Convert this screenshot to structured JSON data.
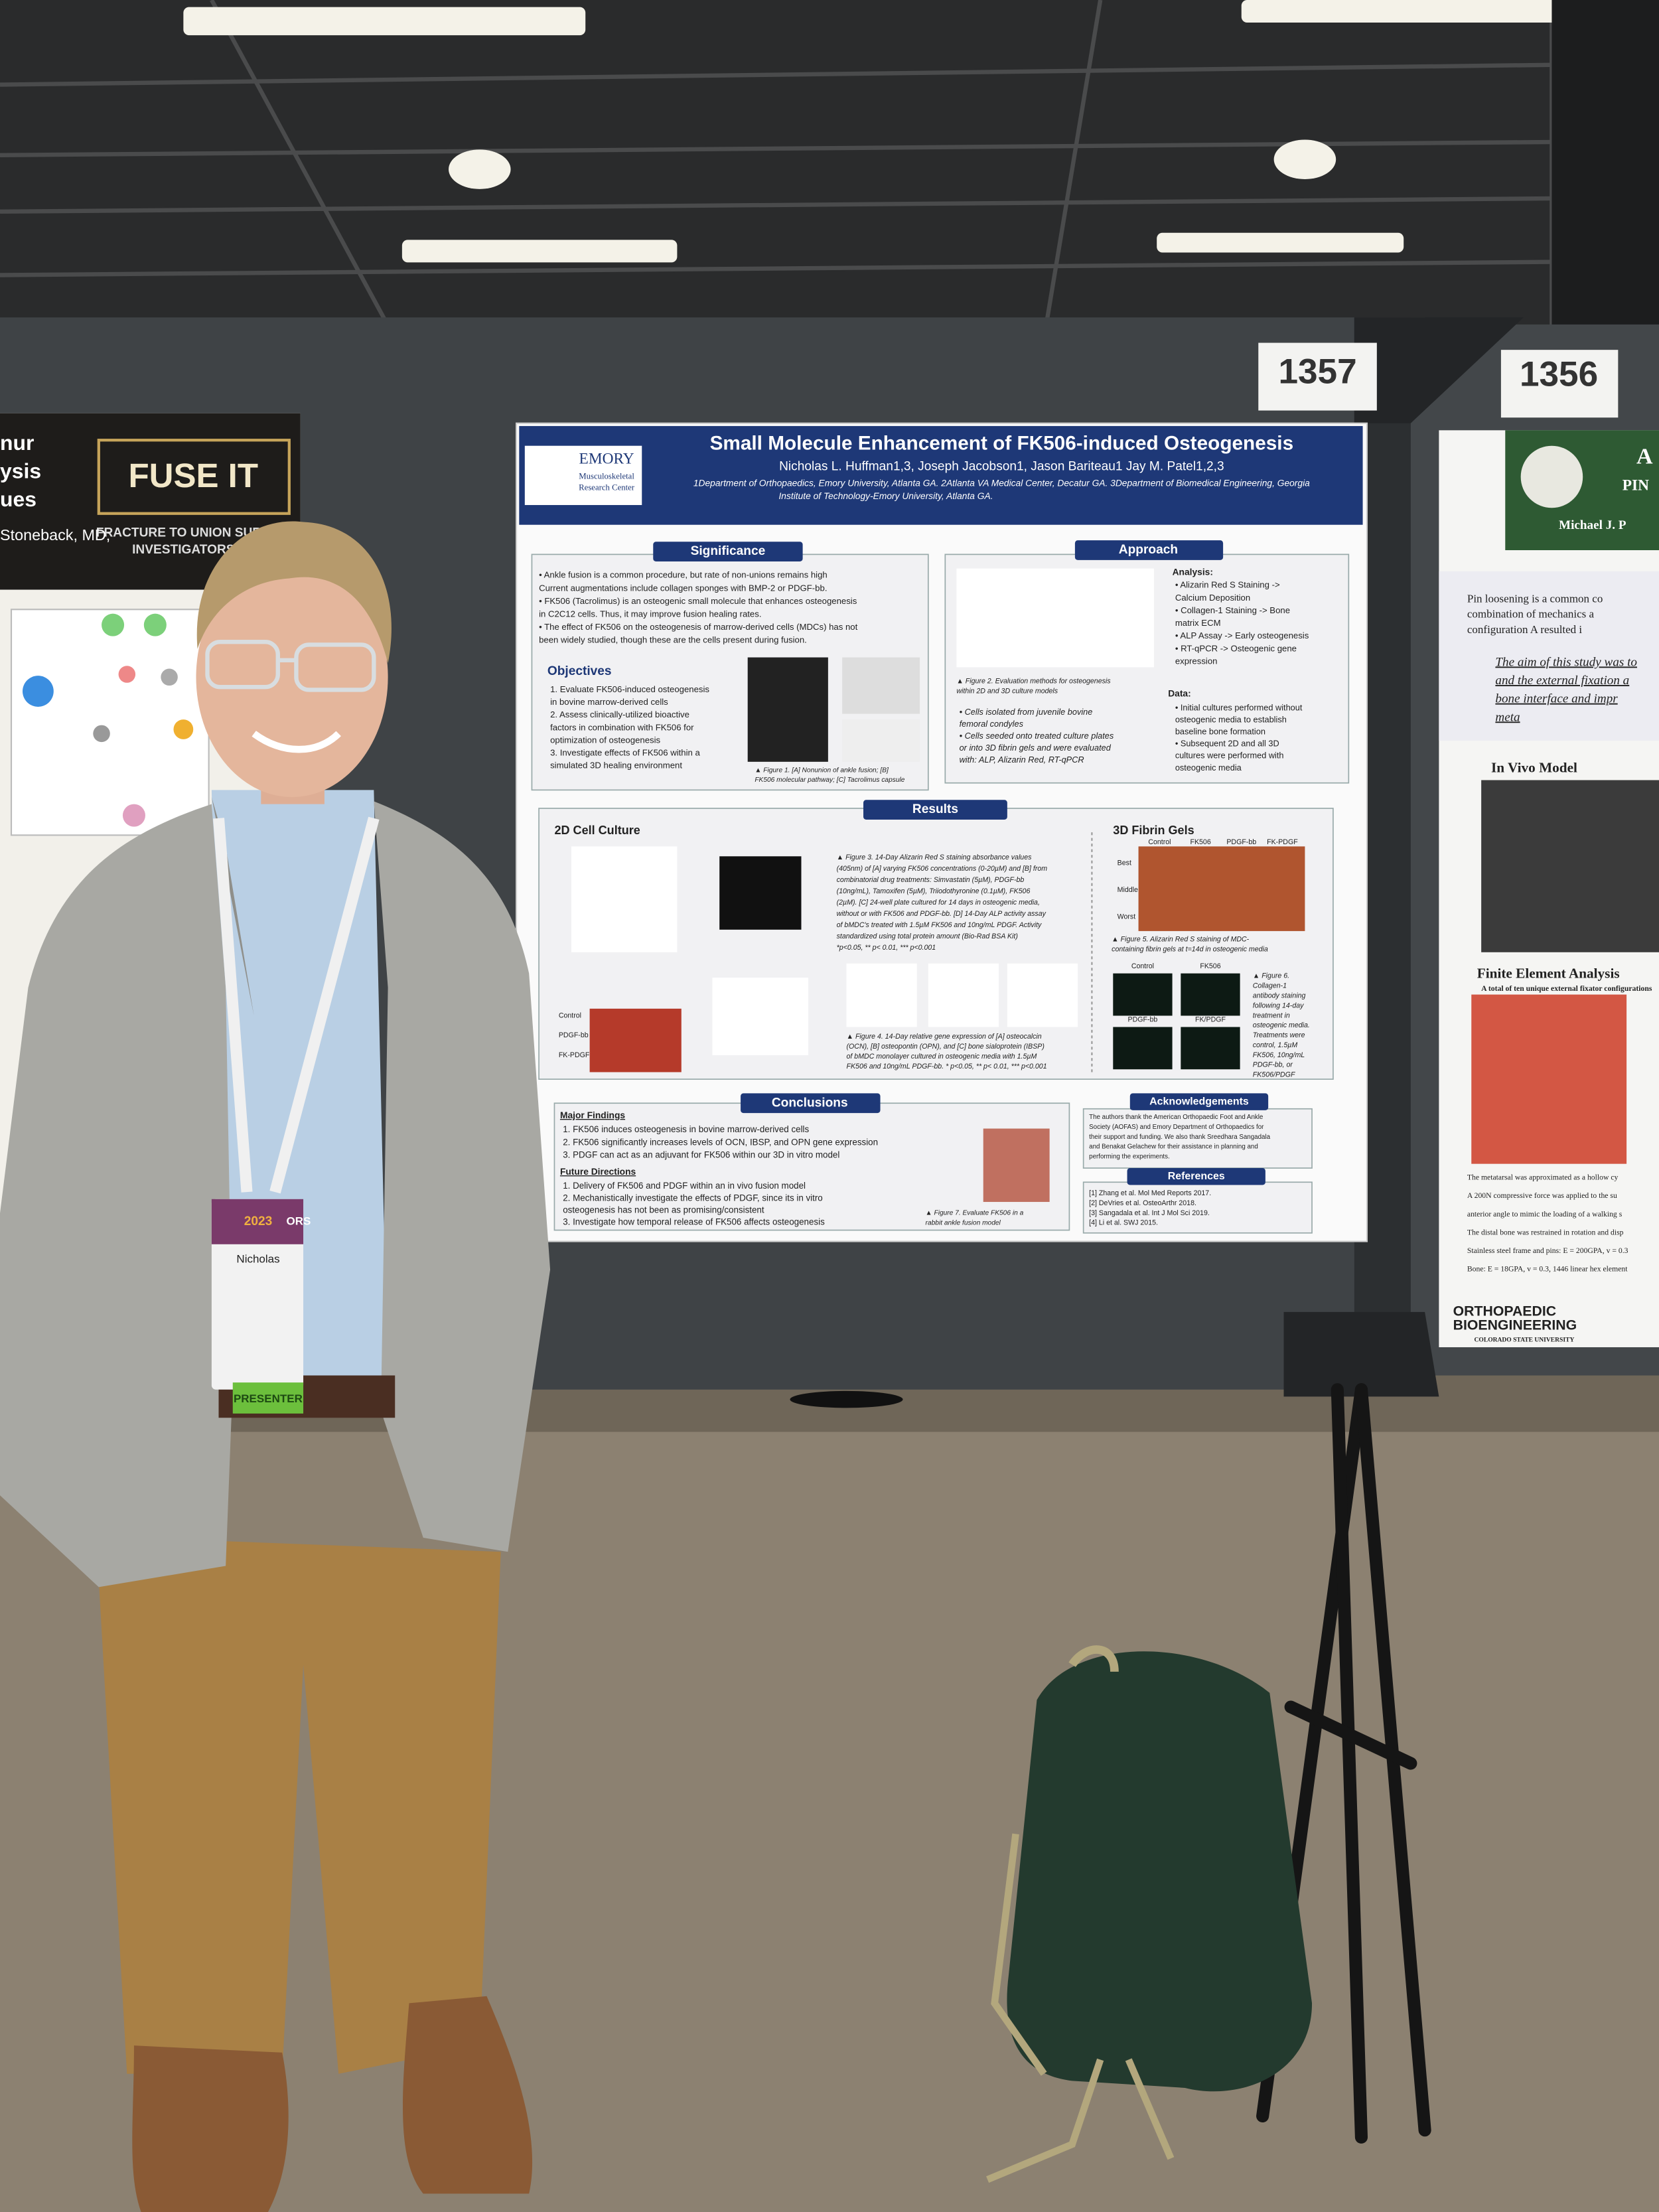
{
  "board_numbers": [
    "1357",
    "1356"
  ],
  "left_poster": {
    "title_fragments": [
      "nur",
      "ysis",
      "ues"
    ],
    "logo": "FUSE IT",
    "tagline": [
      "FRACTURE TO UNION SURGEON",
      "INVESTIGATORS"
    ],
    "author": "Stoneback, MD;"
  },
  "poster": {
    "title": "Small Molecule Enhancement of FK506-induced Osteogenesis",
    "authors": "Nicholas L. Huffman1,3, Joseph Jacobson1, Jason Bariteau1 Jay M. Patel1,2,3",
    "affiliations": [
      "1Department of Orthopaedics, Emory University, Atlanta GA.  2Atlanta VA Medical Center, Decatur GA. 3Department of Biomedical Engineering, Georgia",
      "Institute of Technology-Emory University, Atlanta GA."
    ],
    "logo": "EMORY",
    "logo_sub": [
      "Musculoskeletal",
      "Research Center"
    ],
    "significance": {
      "header": "Significance",
      "lines": [
        "• Ankle fusion is a common procedure, but rate of non-unions remains high",
        "  Current augmentations include collagen sponges with BMP-2 or PDGF-bb.",
        "• FK506 (Tacrolimus) is an osteogenic small molecule that enhances osteogenesis",
        "  in C2C12 cells. Thus, it may improve fusion healing rates.",
        "• The effect of FK506 on the osteogenesis of marrow-derived cells (MDCs) has not",
        "  been widely studied, though these are the cells present during fusion."
      ]
    },
    "objectives": {
      "header": "Objectives",
      "lines": [
        "1. Evaluate FK506-induced osteogenesis",
        "   in bovine marrow-derived cells",
        "2. Assess clinically-utilized bioactive",
        "   factors in combination with FK506 for",
        "   optimization of osteogenesis",
        "3. Investigate effects of FK506 within a",
        "   simulated 3D healing environment"
      ],
      "caption": [
        "▲ Figure 1. [A] Nonunion of ankle fusion; [B]",
        "FK506 molecular pathway; [C] Tacrolimus capsule"
      ]
    },
    "approach": {
      "header": "Approach",
      "analysis_header": "Analysis:",
      "analysis": [
        "• Alizarin Red S Staining ->",
        "   Calcium Deposition",
        "• Collagen-1 Staining -> Bone",
        "   matrix ECM",
        "• ALP Assay -> Early osteogenesis",
        "• RT-qPCR -> Osteogenic gene",
        "   expression"
      ],
      "caption": [
        "▲ Figure 2. Evaluation methods for osteogenesis",
        "within 2D and 3D culture models"
      ],
      "cells": [
        "• Cells isolated from juvenile bovine",
        "   femoral condyles",
        "• Cells seeded onto treated culture plates",
        "   or into 3D fibrin gels and were evaluated",
        "   with: ALP, Alizarin Red, RT-qPCR"
      ],
      "data_header": "Data:",
      "data": [
        "• Initial cultures performed without",
        "   osteogenic media to establish",
        "   baseline bone formation",
        "• Subsequent 2D and all 3D",
        "   cultures were performed with",
        "   osteogenic media"
      ]
    },
    "results": {
      "header": "Results",
      "culture_2d": "2D Cell Culture",
      "fibrin_3d": "3D Fibrin Gels",
      "figure3": [
        "▲ Figure 3. 14-Day Alizarin Red S staining absorbance values",
        "(405nm) of [A] varying FK506 concentrations (0-20µM) and [B] from",
        "combinatorial drug treatments: Simvastatin (5µM), PDGF-bb",
        "(10ng/mL), Tamoxifen (5µM), Triiodothyronine (0.1µM), FK506",
        "(2µM). [C] 24-well plate cultured for 14 days in osteogenic media,",
        "without or with FK506 and PDGF-bb. [D] 14-Day ALP activity assay",
        "of bMDC's treated with 1.5µM FK506 and 10ng/mL PDGF. Activity",
        "standardized using total protein amount (Bio-Rad BSA Kit)",
        "*p<0.05, ** p< 0.01, *** p<0.001"
      ],
      "figure4": [
        "▲ Figure 4. 14-Day relative gene expression of [A] osteocalcin",
        "(OCN), [B] osteopontin (OPN), and [C] bone sialoprotein (IBSP)",
        "of bMDC monolayer cultured in osteogenic media with 1.5µM",
        "FK506 and 10ng/mL PDGF-bb. * p<0.05, ** p< 0.01, *** p<0.001"
      ],
      "figure5": [
        "▲ Figure 5. Alizarin Red S staining of MDC-",
        "containing fibrin gels at t=14d in osteogenic media"
      ],
      "figure6": [
        "▲ Figure 6.",
        "Collagen-1",
        "antibody staining",
        "following 14-day",
        "treatment in",
        "osteogenic media.",
        "Treatments were",
        "control, 1.5µM",
        "FK506, 10ng/mL",
        "PDGF-bb, or",
        "FK506/PDGF"
      ],
      "gel_columns": [
        "Control",
        "FK506",
        "PDGF-bb",
        "FK-PDGF"
      ],
      "gel_rows": [
        "Best",
        "Middle",
        "Worst"
      ],
      "stain_labels": [
        "Control",
        "FK506",
        "PDGF-bb",
        "FK/PDGF"
      ],
      "plate_rows": [
        "Control",
        "PDGF-bb",
        "FK-PDGF"
      ]
    },
    "conclusions": {
      "header": "Conclusions",
      "findings_header": "Major Findings",
      "findings": [
        "1. FK506 induces osteogenesis in bovine marrow-derived cells",
        "2. FK506 significantly increases levels of OCN, IBSP, and OPN gene expression",
        "3. PDGF can act as an adjuvant for FK506 within our 3D in vitro model"
      ],
      "future_header": "Future Directions",
      "future": [
        "1. Delivery of FK506 and PDGF within an in vivo fusion model",
        "2. Mechanistically investigate the effects of PDGF, since its in vitro",
        "   osteogenesis has not been as promising/consistent",
        "3. Investigate how temporal release of FK506 affects osteogenesis"
      ],
      "caption": [
        "▲ Figure 7. Evaluate FK506 in a",
        "rabbit ankle fusion model"
      ]
    },
    "acknowledgements": {
      "header": "Acknowledgements",
      "lines": [
        "The authors thank the American Orthopaedic Foot and Ankle",
        "Society (AOFAS) and Emory Department of Orthopaedics for",
        "their support and funding. We also thank Sreedhara Sangadala",
        "and Benakat Gelachew for their assistance in planning and",
        "performing the experiments."
      ]
    },
    "references": {
      "header": "References",
      "lines": [
        "[1] Zhang et al. Mol Med Reports 2017.",
        "[2] DeVries et al. OsteoArthr 2018.",
        "[3] Sangadala et al. Int J Mol Sci 2019.",
        "[4] Li et al. SWJ 2015."
      ]
    }
  },
  "right_poster": {
    "title_fragments": [
      "A",
      "PIN"
    ],
    "author": "Michael J. P",
    "intro": [
      "Pin loosening is a common co",
      "combination of mechanics a",
      "configuration A resulted i"
    ],
    "aim": [
      "The aim of this study was to",
      "and the external fixation a",
      "bone interface and impr",
      "meta"
    ],
    "in_vivo": "In Vivo Model",
    "fea": "Finite Element Analysis",
    "fea_note": "A total of ten unique external fixator configurations",
    "notes": [
      "The metatarsal was approximated as a hollow cy",
      "A 200N compressive force was applied to the su",
      "anterior angle to mimic the loading of a walking s",
      "The distal bone was restrained in rotation and disp",
      "Stainless steel frame and pins: E = 200GPA, v = 0.3",
      "Bone: E = 18GPA, v = 0.3, 1446 linear hex element"
    ],
    "lab": [
      "ORTHOPAEDIC",
      "BIOENGINEERING"
    ],
    "university": "COLORADO STATE UNIVERSITY"
  },
  "badge": {
    "name": "Nicholas",
    "role": "PRESENTER",
    "year": "2023",
    "org": "ORS"
  }
}
